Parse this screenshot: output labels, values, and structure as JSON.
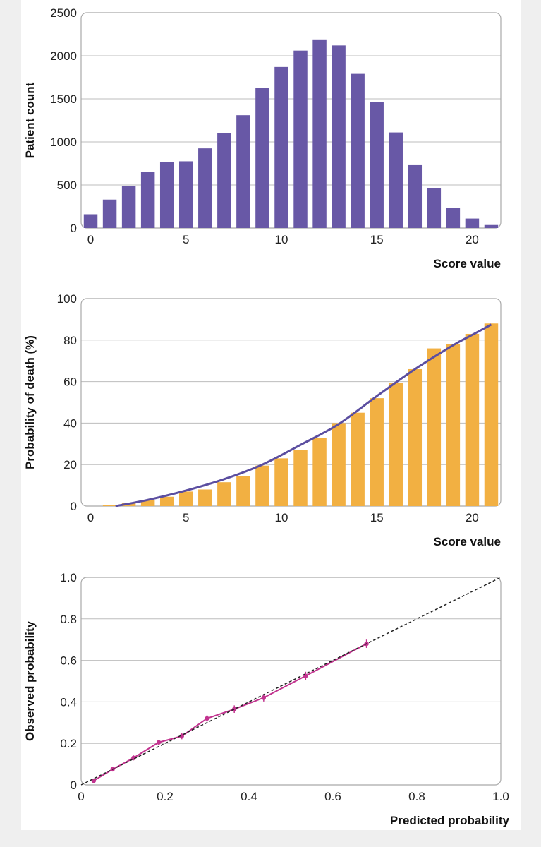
{
  "colors": {
    "histogram_bar": "#6858a6",
    "probability_bar": "#f2b042",
    "probability_curve": "#5b4ea0",
    "calibration_line": "#c2338f",
    "reference_line": "#222222"
  },
  "chart_data": [
    {
      "type": "bar",
      "title": "",
      "xlabel": "Score value",
      "ylabel": "Patient count",
      "xlim": [
        -0.5,
        21.5
      ],
      "ylim": [
        0,
        2500
      ],
      "xticks": [
        "0",
        "5",
        "10",
        "15",
        "20"
      ],
      "yticks": [
        "0",
        "500",
        "1000",
        "1500",
        "2000",
        "2500"
      ],
      "grid": true,
      "categories": [
        0,
        1,
        2,
        3,
        4,
        5,
        6,
        7,
        8,
        9,
        10,
        11,
        12,
        13,
        14,
        15,
        16,
        17,
        18,
        19,
        20,
        21
      ],
      "values": [
        160,
        330,
        490,
        650,
        770,
        775,
        925,
        1100,
        1310,
        1630,
        1870,
        2060,
        2190,
        2120,
        1790,
        1460,
        1110,
        730,
        460,
        230,
        110,
        35
      ]
    },
    {
      "type": "bar",
      "title": "",
      "xlabel": "Score value",
      "ylabel": "Probability of death (%)",
      "xlim": [
        -0.5,
        21.5
      ],
      "ylim": [
        0,
        100
      ],
      "xticks": [
        "0",
        "5",
        "10",
        "15",
        "20"
      ],
      "yticks": [
        "0",
        "20",
        "40",
        "60",
        "80",
        "100"
      ],
      "grid": true,
      "categories": [
        0,
        1,
        2,
        3,
        4,
        5,
        6,
        7,
        8,
        9,
        10,
        11,
        12,
        13,
        14,
        15,
        16,
        17,
        18,
        19,
        20,
        21
      ],
      "values": [
        0,
        0.5,
        1.5,
        3,
        4.5,
        7,
        8,
        11.5,
        14.5,
        19.5,
        23,
        27,
        33,
        40,
        45,
        52,
        59.5,
        66,
        76,
        78,
        83,
        88
      ],
      "series": [
        {
          "name": "Predicted probability curve",
          "type": "line",
          "x": [
            1.3,
            3,
            5,
            7,
            9,
            11,
            13,
            15,
            17,
            19,
            20,
            21
          ],
          "values": [
            0,
            3,
            7.5,
            13,
            20,
            29.5,
            39.5,
            53,
            66,
            77.5,
            82.5,
            87.5
          ]
        }
      ]
    },
    {
      "type": "line",
      "title": "",
      "xlabel": "Predicted probability",
      "ylabel": "Observed probability",
      "xlim": [
        0,
        1
      ],
      "ylim": [
        0,
        1
      ],
      "xticks": [
        "0",
        "0.2",
        "0.4",
        "0.6",
        "0.8",
        "1.0"
      ],
      "yticks": [
        "0",
        "0.2",
        "0.4",
        "0.6",
        "0.8",
        "1.0"
      ],
      "grid": true,
      "series": [
        {
          "name": "Calibration",
          "x": [
            0.03,
            0.075,
            0.125,
            0.185,
            0.24,
            0.3,
            0.365,
            0.435,
            0.535,
            0.68
          ],
          "values": [
            0.02,
            0.075,
            0.13,
            0.205,
            0.235,
            0.32,
            0.365,
            0.42,
            0.525,
            0.68
          ],
          "error": [
            0.01,
            0.01,
            0.012,
            0.012,
            0.015,
            0.015,
            0.018,
            0.018,
            0.02,
            0.02
          ]
        },
        {
          "name": "Reference (y = x)",
          "style": "dashed",
          "x": [
            0,
            1
          ],
          "values": [
            0,
            1
          ]
        }
      ]
    }
  ]
}
